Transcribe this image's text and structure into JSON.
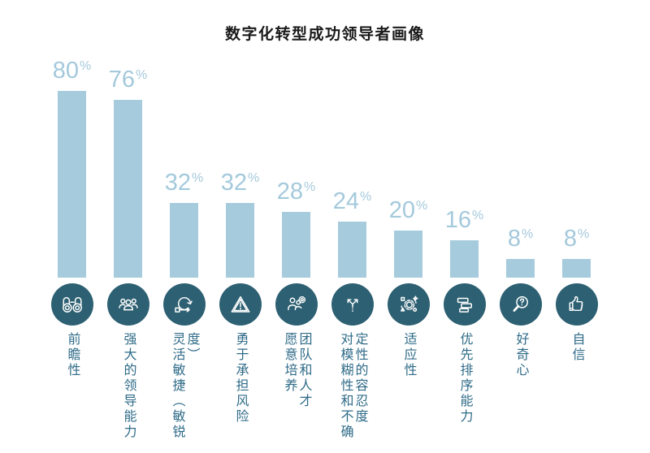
{
  "title": "数字化转型成功领导者画像",
  "chart_data": {
    "type": "bar",
    "title": "数字化转型成功领导者画像",
    "unit": "%",
    "categories": [
      "前瞻性",
      "强大的领导能力",
      "灵活敏捷（敏锐度）",
      "勇于承担风险",
      "愿意培养团队和人才",
      "对模糊性和不确定性的容忍度",
      "适应性",
      "优先排序能力",
      "好奇心",
      "自信"
    ],
    "values": [
      80,
      76,
      32,
      32,
      28,
      24,
      20,
      16,
      8,
      8
    ],
    "value_labels": [
      "80%",
      "76%",
      "32%",
      "32%",
      "28%",
      "24%",
      "20%",
      "16%",
      "8%",
      "8%"
    ],
    "xlabel": "",
    "ylabel": "",
    "ylim": [
      0,
      100
    ],
    "grid": false,
    "legend": "none",
    "axes_visible": false,
    "colors": {
      "bar": "#a5cbdd",
      "value_label": "#a4c9dc",
      "icon_circle": "#2d6072",
      "icon_glyph": "#ffffff",
      "category_label": "#2f6b88",
      "title": "#1a1a1a"
    },
    "icons": [
      "binoculars",
      "team-of-people",
      "agile-loop",
      "warning-triangle",
      "people-with-gear",
      "fork-arrows",
      "gear-with-shapes",
      "stacked-priority-bars",
      "magnifier-question",
      "thumbs-up"
    ]
  },
  "columns": [
    {
      "label_lines": [
        "前瞻性"
      ]
    },
    {
      "label_lines": [
        "强大的领导能力"
      ]
    },
    {
      "label_lines": [
        "灵活敏捷（敏锐度）"
      ]
    },
    {
      "label_lines": [
        "勇于承担风险"
      ]
    },
    {
      "label_lines": [
        "愿意培养",
        "团队和人才"
      ]
    },
    {
      "label_lines": [
        "对模糊性和不确",
        "定性的容忍度"
      ]
    },
    {
      "label_lines": [
        "适应性"
      ]
    },
    {
      "label_lines": [
        "优先排序能力"
      ]
    },
    {
      "label_lines": [
        "好奇心"
      ]
    },
    {
      "label_lines": [
        "自信"
      ]
    }
  ]
}
